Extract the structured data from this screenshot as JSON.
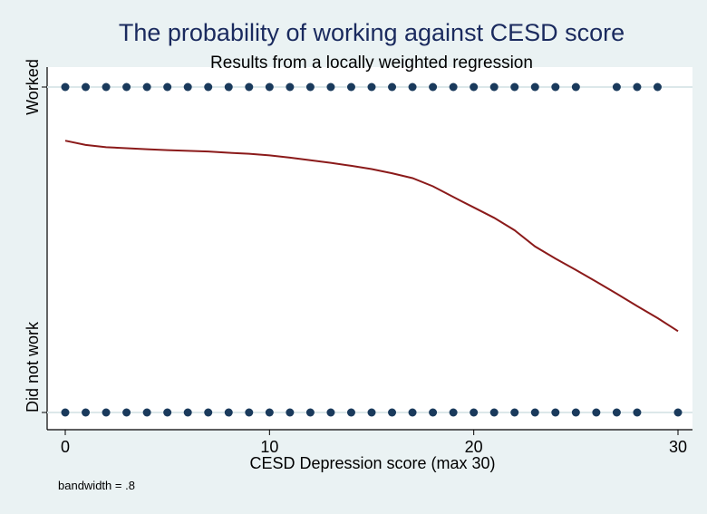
{
  "chart_data": {
    "type": "scatter",
    "title": "The probability of working against CESD score",
    "subtitle": "Results from a locally weighted regression",
    "xlabel": "CESD Depression score (max 30)",
    "ylabel": "",
    "xlim": [
      0,
      30
    ],
    "ylim": [
      0,
      1
    ],
    "x_ticks": [
      0,
      10,
      20,
      30
    ],
    "y_ticks": [
      {
        "value": 0,
        "label": "Did not work"
      },
      {
        "value": 1,
        "label": "Worked"
      }
    ],
    "grid": true,
    "note": "bandwidth = .8",
    "series": [
      {
        "kind": "scatter",
        "color": "#1a3a5c",
        "points": [
          [
            0,
            1
          ],
          [
            1,
            1
          ],
          [
            2,
            1
          ],
          [
            3,
            1
          ],
          [
            4,
            1
          ],
          [
            5,
            1
          ],
          [
            6,
            1
          ],
          [
            7,
            1
          ],
          [
            8,
            1
          ],
          [
            9,
            1
          ],
          [
            10,
            1
          ],
          [
            11,
            1
          ],
          [
            12,
            1
          ],
          [
            13,
            1
          ],
          [
            14,
            1
          ],
          [
            15,
            1
          ],
          [
            16,
            1
          ],
          [
            17,
            1
          ],
          [
            18,
            1
          ],
          [
            19,
            1
          ],
          [
            20,
            1
          ],
          [
            21,
            1
          ],
          [
            22,
            1
          ],
          [
            23,
            1
          ],
          [
            24,
            1
          ],
          [
            25,
            1
          ],
          [
            27,
            1
          ],
          [
            28,
            1
          ],
          [
            29,
            1
          ],
          [
            0,
            0
          ],
          [
            1,
            0
          ],
          [
            2,
            0
          ],
          [
            3,
            0
          ],
          [
            4,
            0
          ],
          [
            5,
            0
          ],
          [
            6,
            0
          ],
          [
            7,
            0
          ],
          [
            8,
            0
          ],
          [
            9,
            0
          ],
          [
            10,
            0
          ],
          [
            11,
            0
          ],
          [
            12,
            0
          ],
          [
            13,
            0
          ],
          [
            14,
            0
          ],
          [
            15,
            0
          ],
          [
            16,
            0
          ],
          [
            17,
            0
          ],
          [
            18,
            0
          ],
          [
            19,
            0
          ],
          [
            20,
            0
          ],
          [
            21,
            0
          ],
          [
            22,
            0
          ],
          [
            23,
            0
          ],
          [
            24,
            0
          ],
          [
            25,
            0
          ],
          [
            26,
            0
          ],
          [
            27,
            0
          ],
          [
            28,
            0
          ],
          [
            30,
            0
          ]
        ]
      },
      {
        "kind": "line",
        "color": "#8b1a1a",
        "x": [
          0,
          1,
          2,
          3,
          4,
          5,
          6,
          7,
          8,
          9,
          10,
          11,
          12,
          13,
          14,
          15,
          16,
          17,
          18,
          19,
          20,
          21,
          22,
          23,
          24,
          25,
          26,
          27,
          28,
          29,
          30
        ],
        "y": [
          0.835,
          0.822,
          0.815,
          0.812,
          0.809,
          0.806,
          0.804,
          0.802,
          0.798,
          0.795,
          0.79,
          0.783,
          0.775,
          0.767,
          0.758,
          0.748,
          0.735,
          0.72,
          0.695,
          0.662,
          0.63,
          0.598,
          0.56,
          0.51,
          0.473,
          0.438,
          0.402,
          0.365,
          0.327,
          0.29,
          0.25
        ]
      }
    ]
  }
}
